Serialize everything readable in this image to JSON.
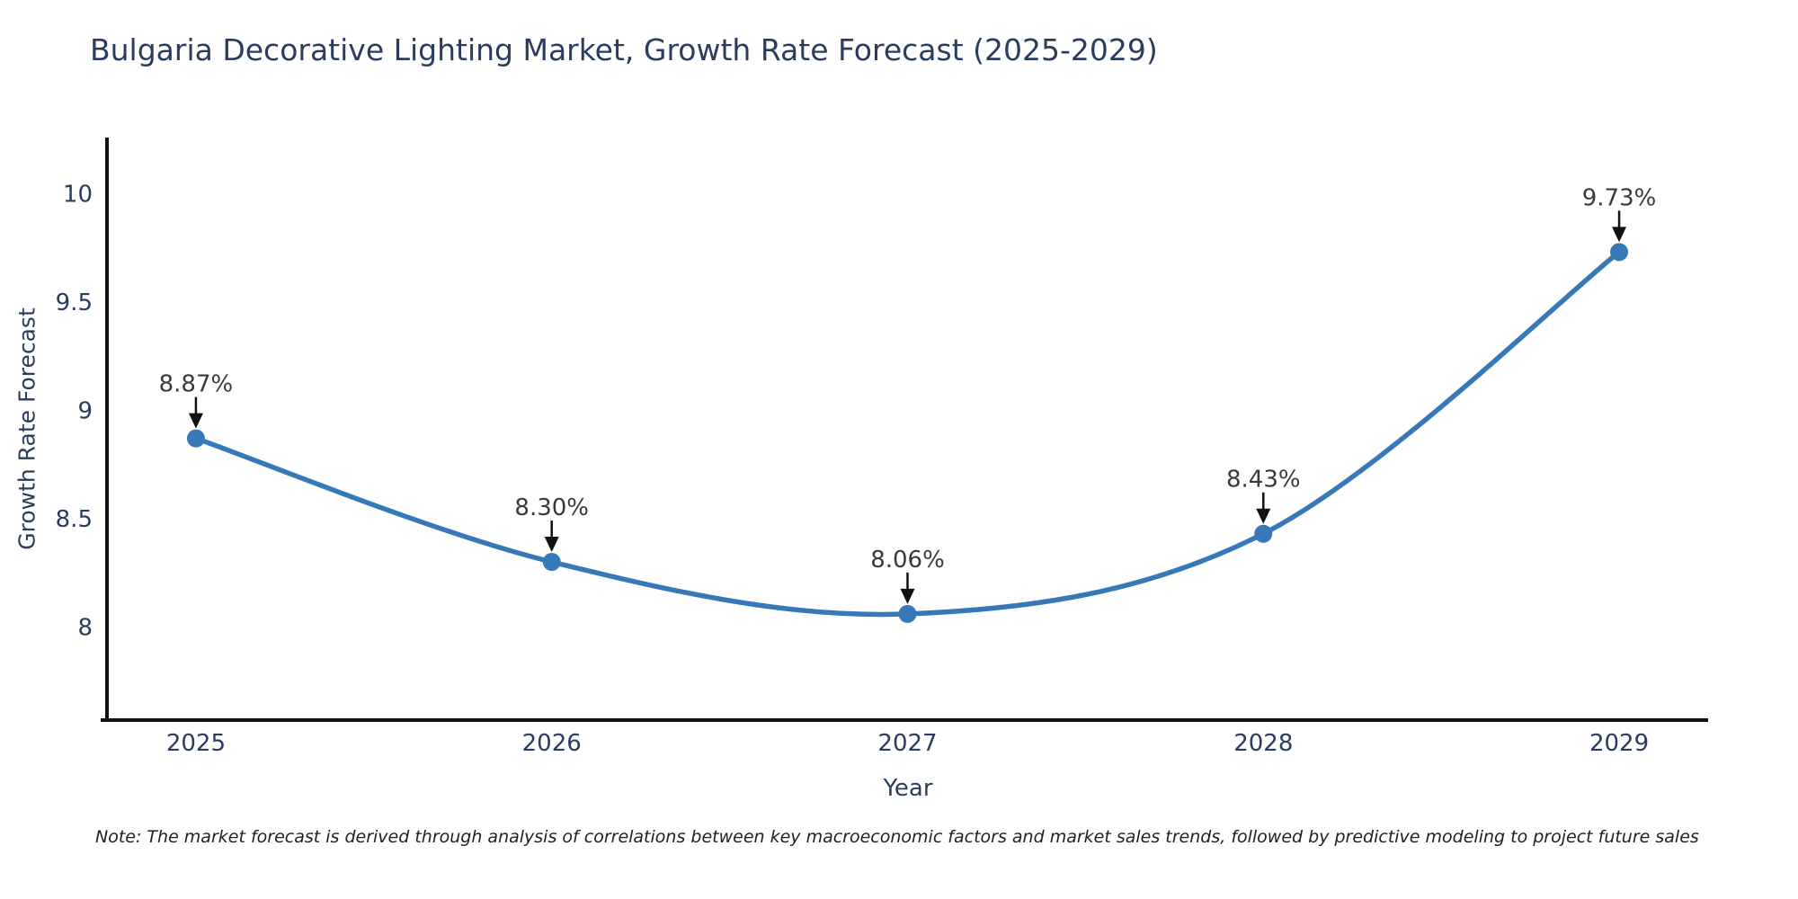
{
  "chart_data": {
    "type": "line",
    "title": "Bulgaria Decorative Lighting Market, Growth Rate Forecast (2025-2029)",
    "xlabel": "Year",
    "ylabel": "Growth Rate Forecast",
    "x": [
      2025,
      2026,
      2027,
      2028,
      2029
    ],
    "values": [
      8.87,
      8.3,
      8.06,
      8.43,
      9.73
    ],
    "point_labels": [
      "8.87%",
      "8.30%",
      "8.06%",
      "8.43%",
      "9.73%"
    ],
    "x_tick_labels": [
      "2025",
      "2026",
      "2027",
      "2028",
      "2029"
    ],
    "y_ticks": [
      8,
      8.5,
      9,
      9.5,
      10
    ],
    "y_tick_labels": [
      "8",
      "8.5",
      "9",
      "9.5",
      "10"
    ],
    "xlim": [
      2024.75,
      2029.25
    ],
    "ylim": [
      7.57,
      10.25
    ],
    "grid": false,
    "legend": "none",
    "line_shape": "spline",
    "colors": {
      "line": "#3779b8",
      "marker": "#3779b8",
      "spine": "#111111",
      "tick_text": "#2b3d5f",
      "annotation_text": "#3a3a3a",
      "arrow": "#111111",
      "background": "#ffffff"
    },
    "note": "Note: The market forecast is derived through analysis of correlations between key macroeconomic factors and market sales trends, followed by predictive modeling to project future sales"
  }
}
